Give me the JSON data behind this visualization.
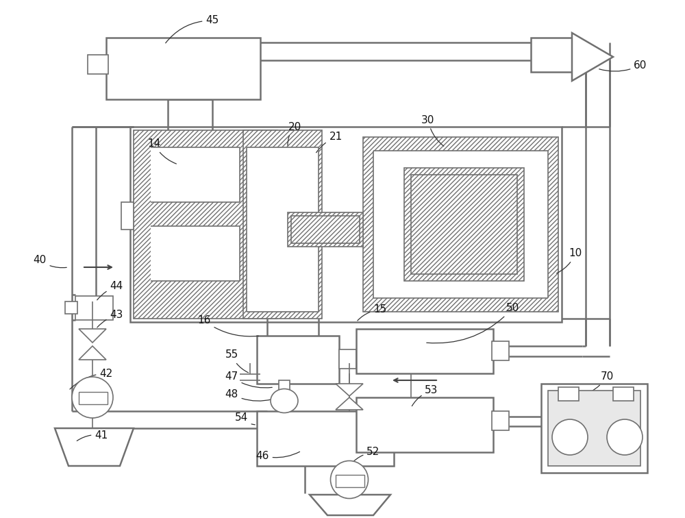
{
  "bg_color": "#ffffff",
  "lc": "#707070",
  "lc_dark": "#404040",
  "fig_width": 10.0,
  "fig_height": 7.56,
  "dpi": 100
}
